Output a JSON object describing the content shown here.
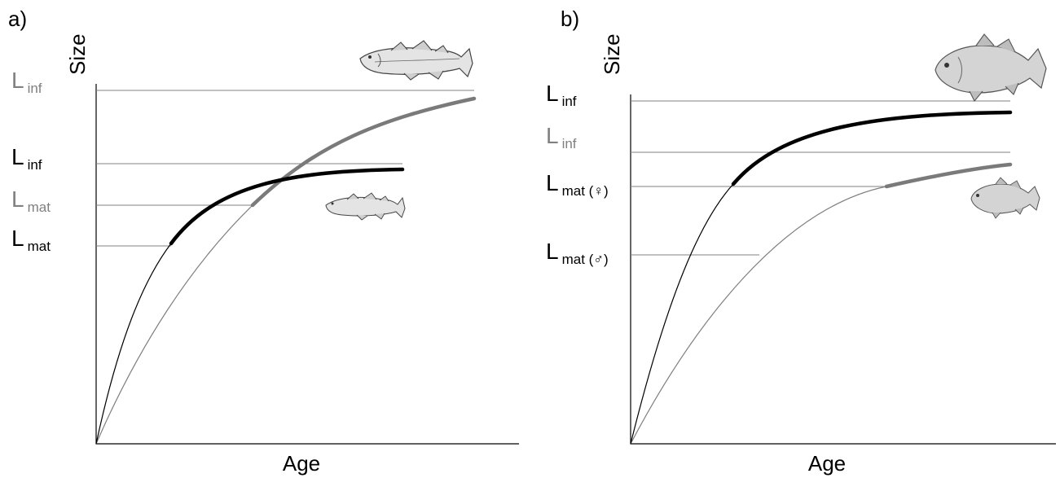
{
  "panel_a": {
    "panel_label": "a)",
    "y_axis_title": "Size",
    "x_axis_title": "Age",
    "labels": {
      "linf_gray": {
        "L": "L",
        "sub": "inf",
        "color": "#808080"
      },
      "linf_black": {
        "L": "L",
        "sub": "inf",
        "color": "#000000"
      },
      "lmat_gray": {
        "L": "L",
        "sub": "mat",
        "color": "#808080"
      },
      "lmat_black": {
        "L": "L",
        "sub": "mat",
        "color": "#000000"
      }
    },
    "icons": [
      "cod-fish-large-icon",
      "cod-fish-small-icon"
    ]
  },
  "panel_b": {
    "panel_label": "b)",
    "y_axis_title": "Size",
    "x_axis_title": "Age",
    "labels": {
      "linf_black": {
        "L": "L",
        "sub": "inf",
        "color": "#000000"
      },
      "linf_gray": {
        "L": "L",
        "sub": "inf",
        "color": "#808080"
      },
      "lmat_female": {
        "L": "L",
        "sub": "mat (♀)",
        "color": "#000000"
      },
      "lmat_male": {
        "L": "L",
        "sub": "mat (♂)",
        "color": "#000000"
      }
    },
    "icons": [
      "barramundi-fish-large-icon",
      "barramundi-fish-small-icon"
    ]
  }
}
